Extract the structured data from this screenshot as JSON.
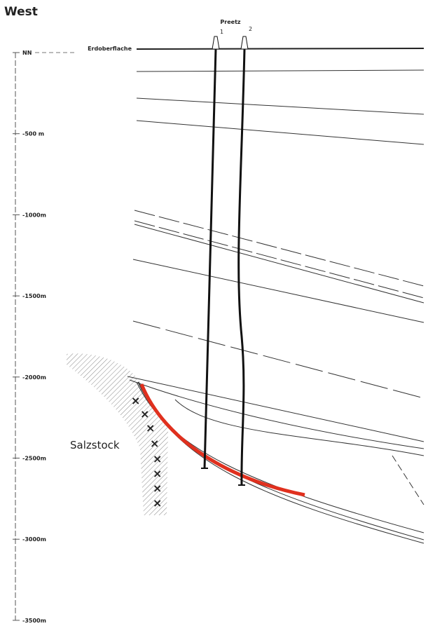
{
  "header": {
    "title": "West"
  },
  "location": "Preetz",
  "wells": [
    "1",
    "2"
  ],
  "surface_label": "Erdoberflache",
  "depth_labels": [
    "NN",
    "-500 m",
    "-1000m",
    "-1500m",
    "-2000m",
    "-2500m",
    "-3000m",
    "-3500m"
  ],
  "salt_label": "Salzstock"
}
